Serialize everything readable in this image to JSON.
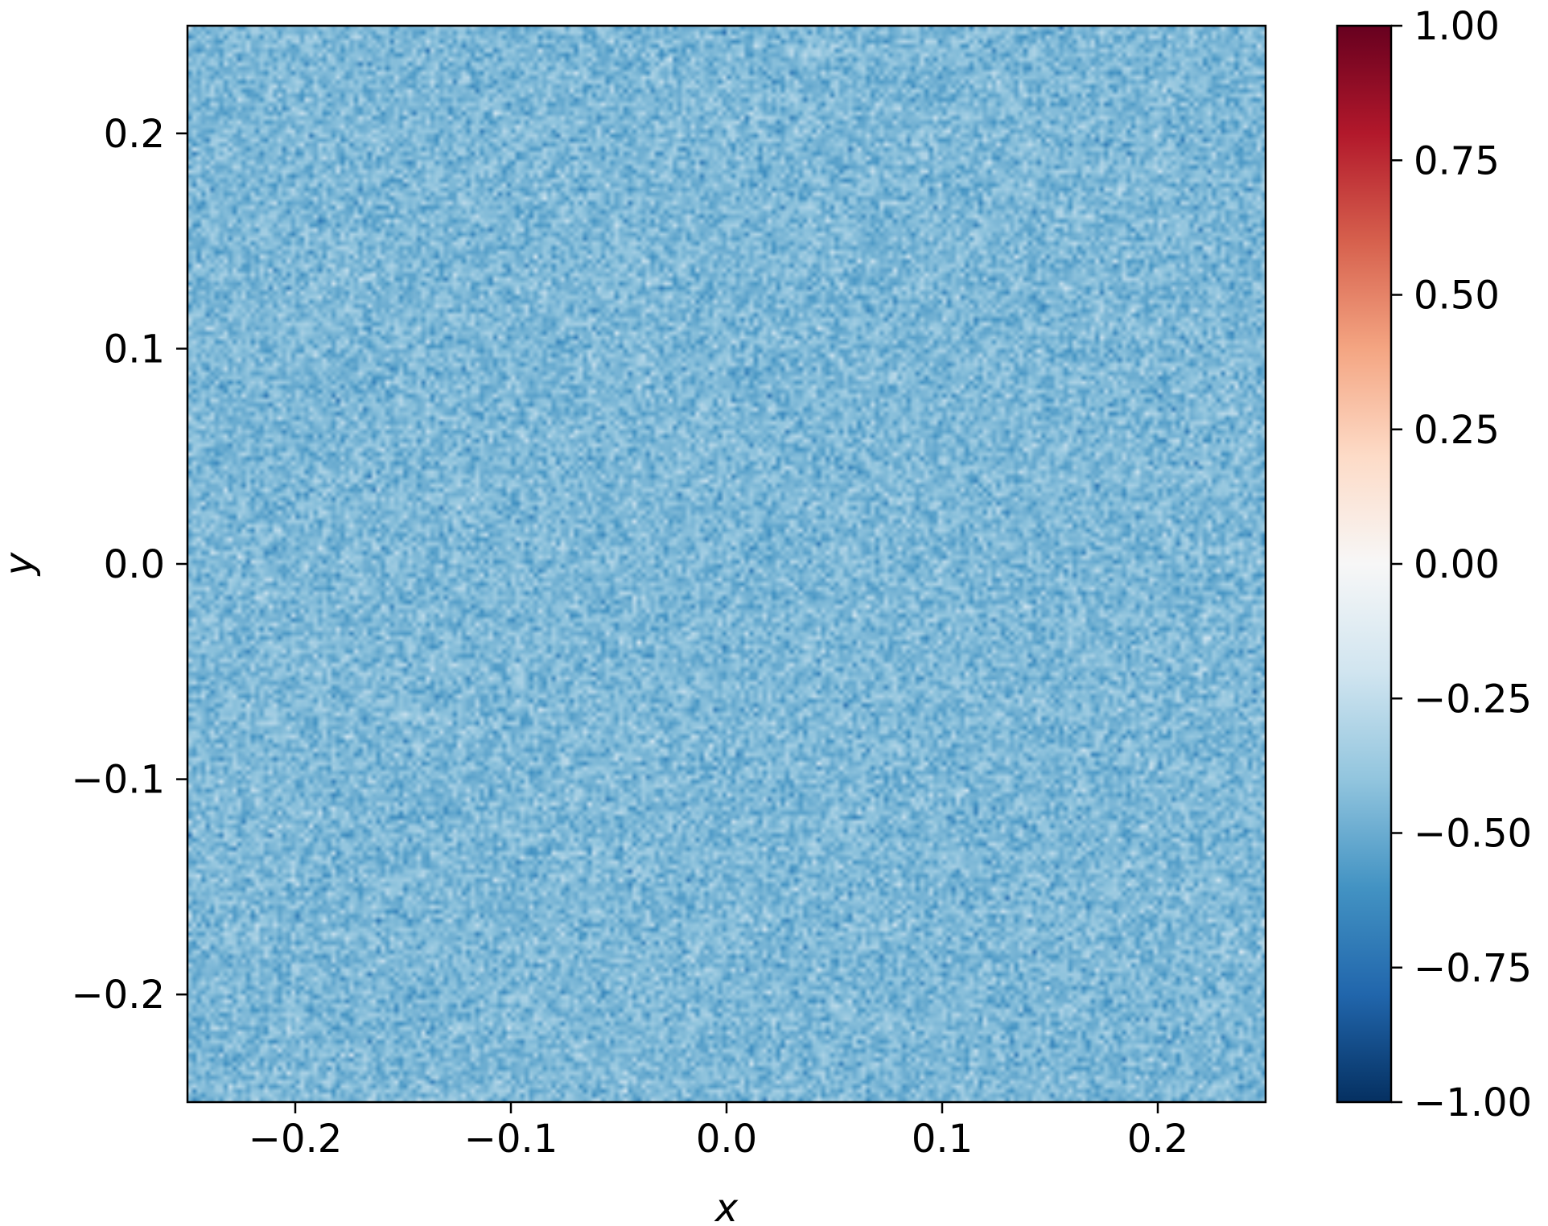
{
  "chart_data": {
    "type": "heatmap",
    "title": "",
    "xlabel": "x",
    "ylabel": "y",
    "xlim": [
      -0.25,
      0.25
    ],
    "ylim": [
      -0.25,
      0.25
    ],
    "x_ticks": [
      -0.2,
      -0.1,
      0.0,
      0.1,
      0.2
    ],
    "x_tick_labels": [
      "−0.2",
      "−0.1",
      "0.0",
      "0.1",
      "0.2"
    ],
    "y_ticks": [
      -0.2,
      -0.1,
      0.0,
      0.1,
      0.2
    ],
    "y_tick_labels": [
      "−0.2",
      "−0.1",
      "0.0",
      "0.1",
      "0.2"
    ],
    "field": {
      "description_value_mean": -0.45,
      "value_range_approx": [
        -0.6,
        -0.3
      ],
      "pattern": "fine-grained random noise, spatially uniform"
    },
    "grid": false,
    "colorbar": {
      "colormap": "RdBu_r",
      "vmin": -1.0,
      "vmax": 1.0,
      "ticks": [
        -1.0,
        -0.75,
        -0.5,
        -0.25,
        0.0,
        0.25,
        0.5,
        0.75,
        1.0
      ],
      "tick_labels": [
        "−1.00",
        "−0.75",
        "−0.50",
        "−0.25",
        "0.00",
        "0.25",
        "0.50",
        "0.75",
        "1.00"
      ],
      "stops": [
        "#053061",
        "#2166ac",
        "#4393c3",
        "#92c5de",
        "#d1e5f0",
        "#f7f7f7",
        "#fddbc7",
        "#f4a582",
        "#d6604d",
        "#b2182b",
        "#67001f"
      ]
    }
  }
}
